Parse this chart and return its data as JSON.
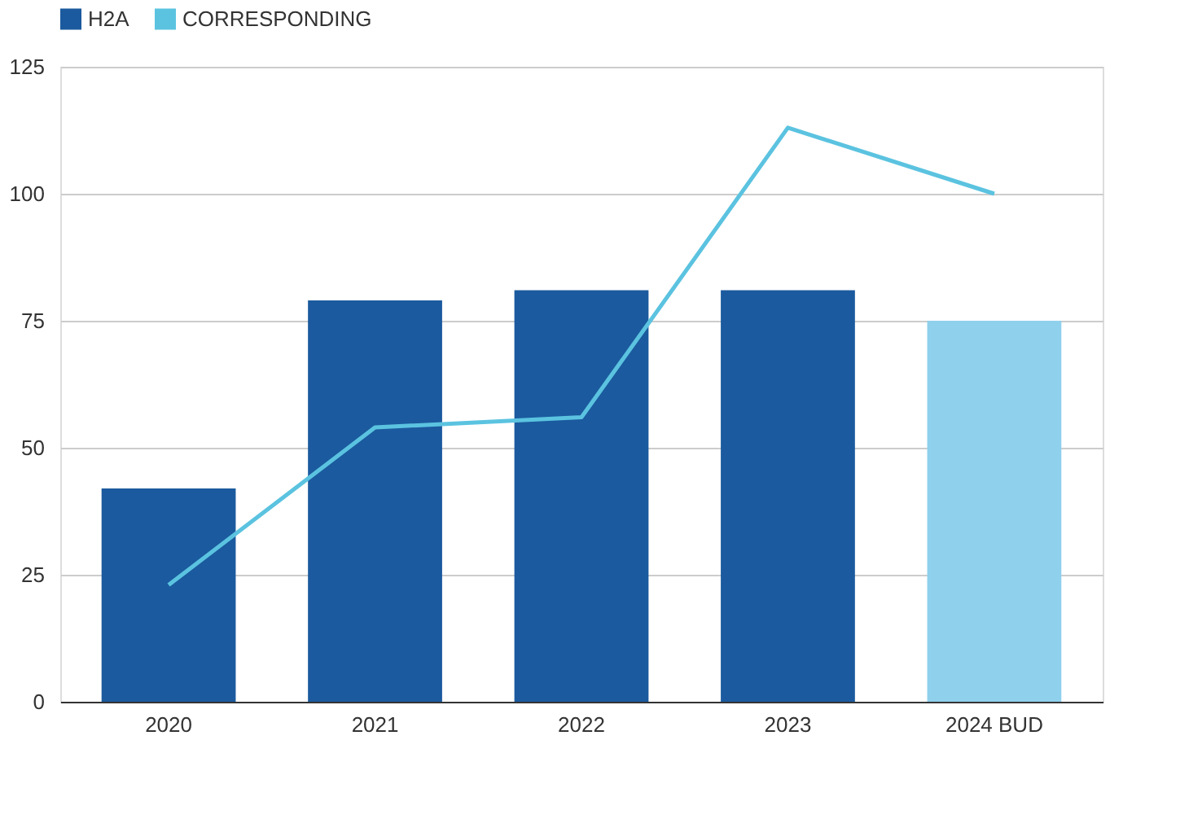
{
  "chart_data": {
    "type": "bar",
    "categories": [
      "2020",
      "2021",
      "2022",
      "2023",
      "2024 BUD"
    ],
    "series": [
      {
        "name": "H2A",
        "color": "#1b5a9e",
        "colors": [
          "#1b5a9e",
          "#1b5a9e",
          "#1b5a9e",
          "#1b5a9e",
          "#8fd0ec"
        ],
        "values": [
          42,
          79,
          81,
          81,
          75
        ]
      },
      {
        "name": "CORRESPONDING",
        "type": "line",
        "color": "#5bc3e0",
        "values": [
          23,
          54,
          56,
          113,
          100
        ]
      }
    ],
    "ylim": [
      0,
      125
    ],
    "yticks": [
      0,
      25,
      50,
      75,
      100,
      125
    ],
    "grid": "y",
    "legend": "top",
    "marker": "none",
    "line_style": "solid"
  }
}
